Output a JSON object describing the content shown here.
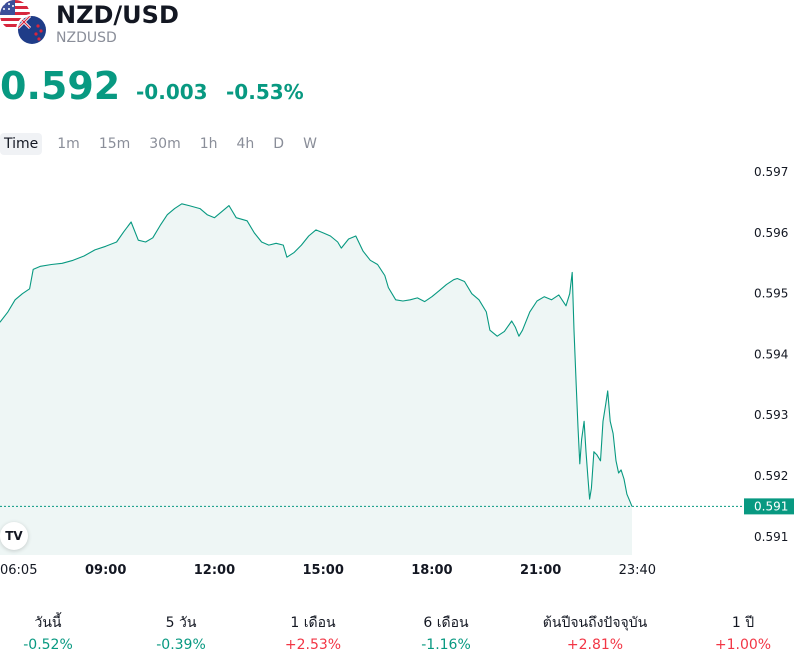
{
  "header": {
    "title": "NZD/USD",
    "code": "NZDUSD",
    "price": "0.592",
    "change": "-0.003",
    "change_pct": "-0.53%",
    "flags": [
      "us-flag-icon",
      "nz-flag-icon"
    ]
  },
  "timeframes": [
    {
      "label": "Time",
      "active": true
    },
    {
      "label": "1m",
      "active": false
    },
    {
      "label": "15m",
      "active": false
    },
    {
      "label": "30m",
      "active": false
    },
    {
      "label": "1h",
      "active": false
    },
    {
      "label": "4h",
      "active": false
    },
    {
      "label": "D",
      "active": false
    },
    {
      "label": "W",
      "active": false
    }
  ],
  "colors": {
    "up": "#089981",
    "down": "#f23645",
    "line": "#089981",
    "area_fill": "#eef6f5"
  },
  "chart_data": {
    "type": "area",
    "ylim": [
      0.5907,
      0.5972
    ],
    "y_ticks": [
      "0.597",
      "0.596",
      "0.595",
      "0.594",
      "0.593",
      "0.592",
      "0.591"
    ],
    "x_ticks": [
      {
        "label": "06:05",
        "bold": false,
        "t": 6.083
      },
      {
        "label": "09:00",
        "bold": true,
        "t": 9.0
      },
      {
        "label": "12:00",
        "bold": true,
        "t": 12.0
      },
      {
        "label": "15:00",
        "bold": true,
        "t": 15.0
      },
      {
        "label": "18:00",
        "bold": true,
        "t": 18.0
      },
      {
        "label": "21:00",
        "bold": true,
        "t": 21.0
      },
      {
        "label": "23:40",
        "bold": false,
        "t": 23.667
      }
    ],
    "x_range": [
      6.083,
      26.5
    ],
    "series": [
      {
        "points": [
          [
            6.08,
            0.59453
          ],
          [
            6.3,
            0.5947
          ],
          [
            6.5,
            0.5949
          ],
          [
            6.7,
            0.595
          ],
          [
            6.9,
            0.59508
          ],
          [
            7.0,
            0.5954
          ],
          [
            7.2,
            0.59545
          ],
          [
            7.5,
            0.59548
          ],
          [
            7.8,
            0.5955
          ],
          [
            8.1,
            0.59555
          ],
          [
            8.4,
            0.59562
          ],
          [
            8.7,
            0.59572
          ],
          [
            9.0,
            0.59578
          ],
          [
            9.3,
            0.59585
          ],
          [
            9.5,
            0.59602
          ],
          [
            9.7,
            0.59618
          ],
          [
            9.9,
            0.59588
          ],
          [
            10.1,
            0.59585
          ],
          [
            10.3,
            0.59592
          ],
          [
            10.5,
            0.59612
          ],
          [
            10.7,
            0.5963
          ],
          [
            10.9,
            0.5964
          ],
          [
            11.1,
            0.59648
          ],
          [
            11.3,
            0.59645
          ],
          [
            11.6,
            0.5964
          ],
          [
            11.8,
            0.5963
          ],
          [
            12.0,
            0.59625
          ],
          [
            12.2,
            0.59635
          ],
          [
            12.4,
            0.59645
          ],
          [
            12.6,
            0.59625
          ],
          [
            12.9,
            0.5962
          ],
          [
            13.1,
            0.596
          ],
          [
            13.3,
            0.59585
          ],
          [
            13.5,
            0.5958
          ],
          [
            13.7,
            0.59583
          ],
          [
            13.9,
            0.5958
          ],
          [
            14.0,
            0.5956
          ],
          [
            14.2,
            0.59568
          ],
          [
            14.4,
            0.5958
          ],
          [
            14.6,
            0.59595
          ],
          [
            14.8,
            0.59605
          ],
          [
            15.0,
            0.596
          ],
          [
            15.2,
            0.59595
          ],
          [
            15.4,
            0.59585
          ],
          [
            15.5,
            0.59575
          ],
          [
            15.7,
            0.5959
          ],
          [
            15.9,
            0.59595
          ],
          [
            16.1,
            0.5957
          ],
          [
            16.3,
            0.59555
          ],
          [
            16.5,
            0.59548
          ],
          [
            16.7,
            0.5953
          ],
          [
            16.8,
            0.5951
          ],
          [
            17.0,
            0.5949
          ],
          [
            17.2,
            0.59488
          ],
          [
            17.4,
            0.5949
          ],
          [
            17.6,
            0.59493
          ],
          [
            17.8,
            0.59487
          ],
          [
            18.0,
            0.59495
          ],
          [
            18.2,
            0.59505
          ],
          [
            18.4,
            0.59515
          ],
          [
            18.6,
            0.59523
          ],
          [
            18.7,
            0.59525
          ],
          [
            18.9,
            0.5952
          ],
          [
            19.1,
            0.595
          ],
          [
            19.3,
            0.5949
          ],
          [
            19.5,
            0.5947
          ],
          [
            19.6,
            0.5944
          ],
          [
            19.8,
            0.5943
          ],
          [
            20.0,
            0.59438
          ],
          [
            20.2,
            0.59455
          ],
          [
            20.3,
            0.59445
          ],
          [
            20.4,
            0.5943
          ],
          [
            20.5,
            0.5944
          ],
          [
            20.7,
            0.5947
          ],
          [
            20.9,
            0.59488
          ],
          [
            21.1,
            0.59495
          ],
          [
            21.3,
            0.5949
          ],
          [
            21.5,
            0.59498
          ],
          [
            21.7,
            0.5948
          ],
          [
            21.8,
            0.595
          ],
          [
            21.87,
            0.59535
          ],
          [
            21.92,
            0.5944
          ],
          [
            21.98,
            0.5935
          ],
          [
            22.03,
            0.5928
          ],
          [
            22.08,
            0.5922
          ],
          [
            22.13,
            0.5926
          ],
          [
            22.2,
            0.5929
          ],
          [
            22.25,
            0.5924
          ],
          [
            22.3,
            0.592
          ],
          [
            22.35,
            0.59162
          ],
          [
            22.4,
            0.5918
          ],
          [
            22.47,
            0.5924
          ],
          [
            22.55,
            0.59235
          ],
          [
            22.65,
            0.59225
          ],
          [
            22.72,
            0.5929
          ],
          [
            22.8,
            0.5932
          ],
          [
            22.85,
            0.5934
          ],
          [
            22.92,
            0.5929
          ],
          [
            23.0,
            0.5927
          ],
          [
            23.08,
            0.59225
          ],
          [
            23.15,
            0.59205
          ],
          [
            23.22,
            0.5921
          ],
          [
            23.3,
            0.59195
          ],
          [
            23.38,
            0.5917
          ],
          [
            23.45,
            0.5916
          ],
          [
            23.52,
            0.5915
          ]
        ]
      }
    ],
    "last_value": 0.5915,
    "last_label": "0.591",
    "ref_value": 0.5915
  },
  "performance": [
    {
      "label": "วันนี้",
      "value": "-0.52%",
      "dir": "down"
    },
    {
      "label": "5 วัน",
      "value": "-0.39%",
      "dir": "down"
    },
    {
      "label": "1 เดือน",
      "value": "+2.53%",
      "dir": "up"
    },
    {
      "label": "6 เดือน",
      "value": "-1.16%",
      "dir": "down"
    },
    {
      "label": "ต้นปีจนถึงปัจจุบัน",
      "value": "+2.81%",
      "dir": "up"
    },
    {
      "label": "1 ปี",
      "value": "+1.00%",
      "dir": "up"
    }
  ]
}
